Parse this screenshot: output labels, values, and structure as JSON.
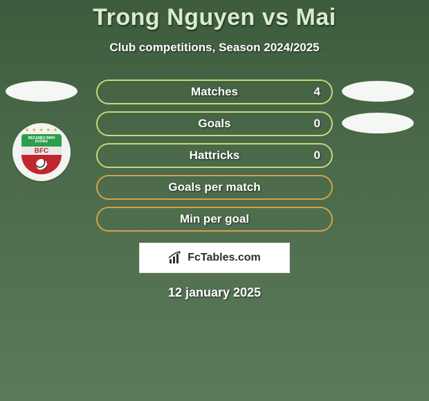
{
  "title": "Trong Nguyen vs Mai",
  "subtitle": "Club competitions, Season 2024/2025",
  "date": "12 january 2025",
  "brand": "FcTables.com",
  "colors": {
    "title": "#d9eccd",
    "text": "#ffffff",
    "pill_with_value_border": "#c9d97a",
    "pill_empty_border": "#d6a24a",
    "oval_bg": "#f5f7f4",
    "brand_bg": "#ffffff"
  },
  "badge": {
    "top_text": "BECAMEX BINH DUONG",
    "mid_text": "BFC",
    "top_color": "#2e9e4a",
    "mid_bg": "#e8e8e8",
    "mid_color": "#c1272d",
    "bot_color": "#c1272d",
    "star_color": "#d9a92f"
  },
  "rows": [
    {
      "label": "Matches",
      "value": "4",
      "has_value": true,
      "left_oval": true,
      "right_oval": true
    },
    {
      "label": "Goals",
      "value": "0",
      "has_value": true,
      "left_oval": false,
      "right_oval": true
    },
    {
      "label": "Hattricks",
      "value": "0",
      "has_value": true,
      "left_oval": false,
      "right_oval": false
    },
    {
      "label": "Goals per match",
      "value": "",
      "has_value": false,
      "left_oval": false,
      "right_oval": false
    },
    {
      "label": "Min per goal",
      "value": "",
      "has_value": false,
      "left_oval": false,
      "right_oval": false
    }
  ]
}
